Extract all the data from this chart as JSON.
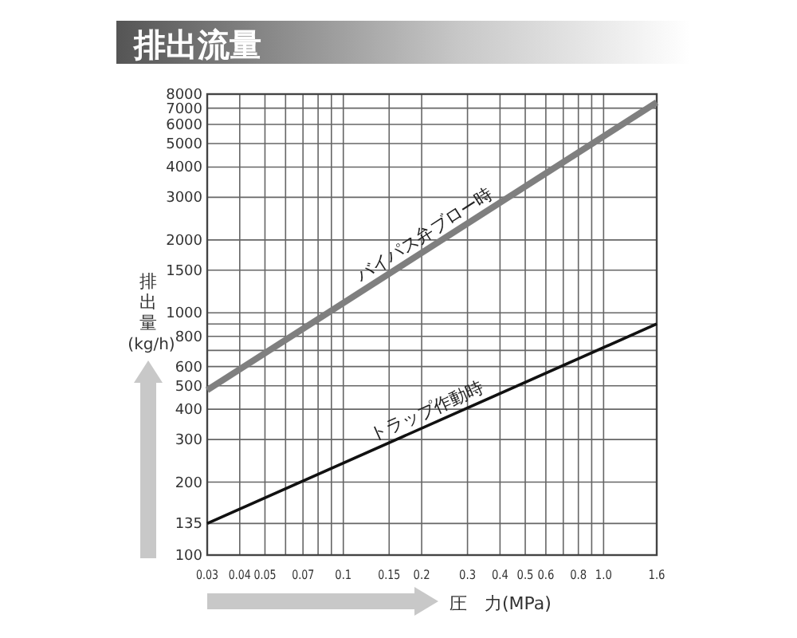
{
  "chart_data": {
    "type": "line",
    "title": "排出流量",
    "xlabel": "圧　力(MPa)",
    "ylabel": "排出量(kg/h)",
    "log": "xy",
    "grid": true,
    "legend": false,
    "marker": "none",
    "line_style": "solid",
    "xlim": [
      0.03,
      1.6
    ],
    "ylim": [
      100,
      8000
    ],
    "xticks": [
      0.03,
      0.04,
      0.05,
      {
        "value": 0.06,
        "label": null
      },
      0.07,
      {
        "value": 0.08,
        "label": null
      },
      {
        "value": 0.09,
        "label": null
      },
      0.1,
      0.15,
      0.2,
      0.3,
      0.4,
      0.5,
      0.6,
      {
        "value": 0.7,
        "label": null
      },
      0.8,
      {
        "value": 0.9,
        "label": null
      },
      {
        "value": 1.0,
        "label": "1.0"
      },
      1.6
    ],
    "yticks": [
      100,
      135,
      200,
      300,
      400,
      500,
      600,
      {
        "value": 700,
        "label": null
      },
      800,
      {
        "value": 900,
        "label": null
      },
      1000,
      1500,
      2000,
      3000,
      4000,
      5000,
      6000,
      7000,
      8000
    ],
    "x": [
      0.03,
      1.6
    ],
    "series": [
      {
        "name": "バイパス弁ブロー時",
        "color": "#7f7f7f",
        "values": [
          480,
          7400
        ]
      },
      {
        "name": "トラップ作動時",
        "color": "#111111",
        "values": [
          135,
          900
        ]
      }
    ]
  }
}
